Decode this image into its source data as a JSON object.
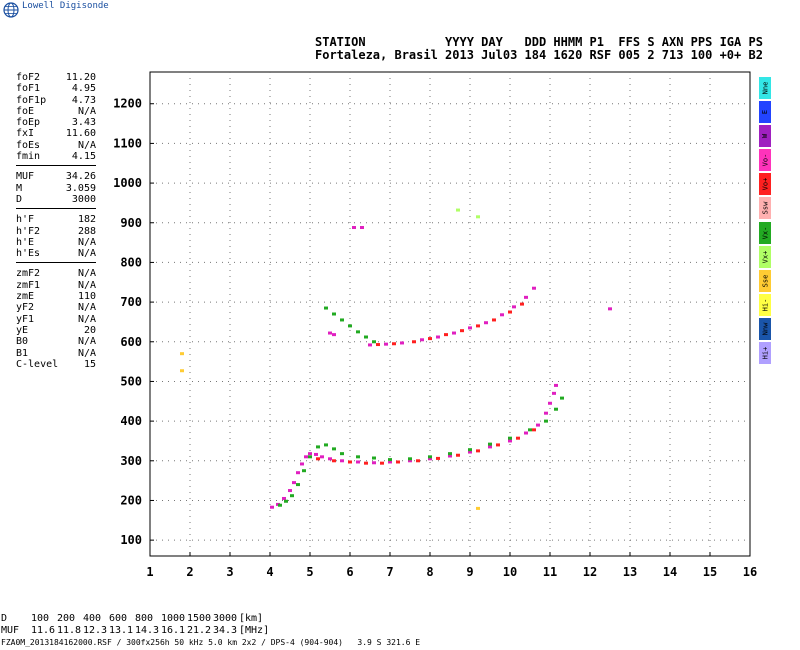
{
  "logo": {
    "text": "Lowell Digisonde",
    "icon": "globe-icon"
  },
  "header": {
    "labels": "STATION           YYYY DAY   DDD HHMM P1  FFS S AXN PPS IGA PS",
    "values": "Fortaleza, Brasil 2013 Jul03 184 1620 RSF 005 2 713 100 +0+ B2"
  },
  "params": [
    {
      "name": "foF2",
      "value": "11.20"
    },
    {
      "name": "foF1",
      "value": "4.95"
    },
    {
      "name": "foF1p",
      "value": "4.73"
    },
    {
      "name": "foE",
      "value": "N/A"
    },
    {
      "name": "foEp",
      "value": "3.43"
    },
    {
      "name": "fxI",
      "value": "11.60"
    },
    {
      "name": "foEs",
      "value": "N/A"
    },
    {
      "name": "fmin",
      "value": "4.15"
    },
    {
      "sep": true
    },
    {
      "name": "MUF",
      "value": "34.26"
    },
    {
      "name": "M",
      "value": "3.059"
    },
    {
      "name": "D",
      "value": "3000"
    },
    {
      "sep": true
    },
    {
      "name": "h'F",
      "value": "182"
    },
    {
      "name": "h'F2",
      "value": "288"
    },
    {
      "name": "h'E",
      "value": "N/A"
    },
    {
      "name": "h'Es",
      "value": "N/A"
    },
    {
      "sep": true
    },
    {
      "name": "zmF2",
      "value": "N/A"
    },
    {
      "name": "zmF1",
      "value": "N/A"
    },
    {
      "name": "zmE",
      "value": "110"
    },
    {
      "name": "yF2",
      "value": "N/A"
    },
    {
      "name": "yF1",
      "value": "N/A"
    },
    {
      "name": "yE",
      "value": "20"
    },
    {
      "name": "B0",
      "value": "N/A"
    },
    {
      "name": "B1",
      "value": "N/A"
    },
    {
      "name": "C-level",
      "value": "15"
    }
  ],
  "muf_table": {
    "row1_label": "D",
    "distances": [
      "100",
      "200",
      "400",
      "600",
      "800",
      "1000",
      "1500",
      "3000"
    ],
    "row1_unit": "[km]",
    "row2_label": "MUF",
    "mufs": [
      "11.6",
      "11.8",
      "12.3",
      "13.1",
      "14.3",
      "16.1",
      "21.2",
      "34.3"
    ],
    "row2_unit": "[MHz]"
  },
  "footer": "FZA0M_2013184162000.RSF / 300fx256h 50 kHz 5.0 km 2x2 / DPS-4 (904-904)   3.9 S 321.6 E",
  "legend": [
    {
      "label": "Nne",
      "color": "#33e6e6"
    },
    {
      "label": "E",
      "color": "#2244ff"
    },
    {
      "label": "W",
      "color": "#a020c0"
    },
    {
      "label": "Vo-",
      "color": "#ff33bb"
    },
    {
      "label": "Vo+",
      "color": "#ff2020"
    },
    {
      "label": "Ssw",
      "color": "#ffb0b0"
    },
    {
      "label": "Vx-",
      "color": "#22aa22"
    },
    {
      "label": "Vx+",
      "color": "#b0ff66"
    },
    {
      "label": "Sse",
      "color": "#ffcc33"
    },
    {
      "label": "Hi-",
      "color": "#ffff44"
    },
    {
      "label": "Nnw",
      "color": "#1a55aa"
    },
    {
      "label": "Hi+",
      "color": "#b0a0ff"
    }
  ],
  "chart_data": {
    "type": "scatter",
    "title": "",
    "xlabel": "",
    "ylabel": "",
    "xlim": [
      1,
      16
    ],
    "ylim": [
      60,
      1280
    ],
    "x_ticks": [
      1,
      2,
      3,
      4,
      5,
      6,
      7,
      8,
      9,
      10,
      11,
      12,
      13,
      14,
      15,
      16
    ],
    "y_ticks": [
      100,
      200,
      300,
      400,
      500,
      600,
      700,
      800,
      900,
      1000,
      1100,
      1200
    ],
    "grid": true,
    "series": [
      {
        "name": "Vo-",
        "color": "#e020c0",
        "points": [
          [
            4.05,
            183
          ],
          [
            4.2,
            190
          ],
          [
            4.35,
            205
          ],
          [
            4.5,
            225
          ],
          [
            4.6,
            245
          ],
          [
            4.7,
            270
          ],
          [
            4.8,
            292
          ],
          [
            4.9,
            310
          ],
          [
            5.0,
            318
          ],
          [
            5.15,
            316
          ],
          [
            5.3,
            310
          ],
          [
            5.5,
            305
          ],
          [
            5.8,
            300
          ],
          [
            6.2,
            297
          ],
          [
            6.6,
            295
          ],
          [
            7.0,
            297
          ],
          [
            7.5,
            300
          ],
          [
            8.0,
            305
          ],
          [
            8.5,
            312
          ],
          [
            9.0,
            322
          ],
          [
            9.5,
            335
          ],
          [
            10.0,
            350
          ],
          [
            10.4,
            370
          ],
          [
            10.7,
            390
          ],
          [
            10.9,
            420
          ],
          [
            11.0,
            445
          ],
          [
            11.1,
            470
          ],
          [
            11.15,
            490
          ],
          [
            6.5,
            592
          ],
          [
            6.9,
            594
          ],
          [
            7.3,
            597
          ],
          [
            7.8,
            605
          ],
          [
            8.2,
            612
          ],
          [
            8.6,
            622
          ],
          [
            9.0,
            635
          ],
          [
            9.4,
            648
          ],
          [
            9.8,
            668
          ],
          [
            10.1,
            688
          ],
          [
            10.4,
            712
          ],
          [
            10.6,
            735
          ],
          [
            6.1,
            888
          ],
          [
            6.3,
            888
          ],
          [
            5.5,
            622
          ],
          [
            5.6,
            618
          ],
          [
            12.5,
            683
          ]
        ]
      },
      {
        "name": "Vo+",
        "color": "#ff2020",
        "points": [
          [
            5.2,
            305
          ],
          [
            5.6,
            300
          ],
          [
            6.0,
            297
          ],
          [
            6.4,
            294
          ],
          [
            6.8,
            294
          ],
          [
            7.2,
            297
          ],
          [
            7.7,
            300
          ],
          [
            8.2,
            306
          ],
          [
            8.7,
            314
          ],
          [
            9.2,
            325
          ],
          [
            9.7,
            340
          ],
          [
            10.2,
            357
          ],
          [
            10.6,
            378
          ],
          [
            6.7,
            593
          ],
          [
            7.1,
            595
          ],
          [
            7.6,
            600
          ],
          [
            8.0,
            608
          ],
          [
            8.4,
            618
          ],
          [
            8.8,
            628
          ],
          [
            9.2,
            640
          ],
          [
            9.6,
            655
          ],
          [
            10.0,
            675
          ],
          [
            10.3,
            695
          ]
        ]
      },
      {
        "name": "Vx-",
        "color": "#22aa22",
        "points": [
          [
            4.25,
            188
          ],
          [
            4.4,
            198
          ],
          [
            4.55,
            212
          ],
          [
            4.7,
            240
          ],
          [
            4.85,
            275
          ],
          [
            5.0,
            310
          ],
          [
            5.2,
            335
          ],
          [
            5.4,
            340
          ],
          [
            5.6,
            330
          ],
          [
            5.8,
            318
          ],
          [
            6.2,
            310
          ],
          [
            6.6,
            307
          ],
          [
            7.0,
            303
          ],
          [
            7.5,
            305
          ],
          [
            8.0,
            310
          ],
          [
            8.5,
            318
          ],
          [
            9.0,
            328
          ],
          [
            9.5,
            342
          ],
          [
            10.0,
            357
          ],
          [
            10.5,
            378
          ],
          [
            10.9,
            400
          ],
          [
            11.15,
            430
          ],
          [
            11.3,
            458
          ],
          [
            5.4,
            685
          ],
          [
            5.6,
            670
          ],
          [
            5.8,
            655
          ],
          [
            6.0,
            640
          ],
          [
            6.2,
            625
          ],
          [
            6.4,
            612
          ],
          [
            6.6,
            600
          ]
        ]
      },
      {
        "name": "Vx+",
        "color": "#b0ff66",
        "points": [
          [
            8.7,
            932
          ],
          [
            9.2,
            915
          ]
        ]
      },
      {
        "name": "Sse",
        "color": "#ffcc33",
        "points": [
          [
            1.8,
            570
          ],
          [
            1.8,
            527
          ],
          [
            9.2,
            180
          ]
        ]
      }
    ]
  }
}
